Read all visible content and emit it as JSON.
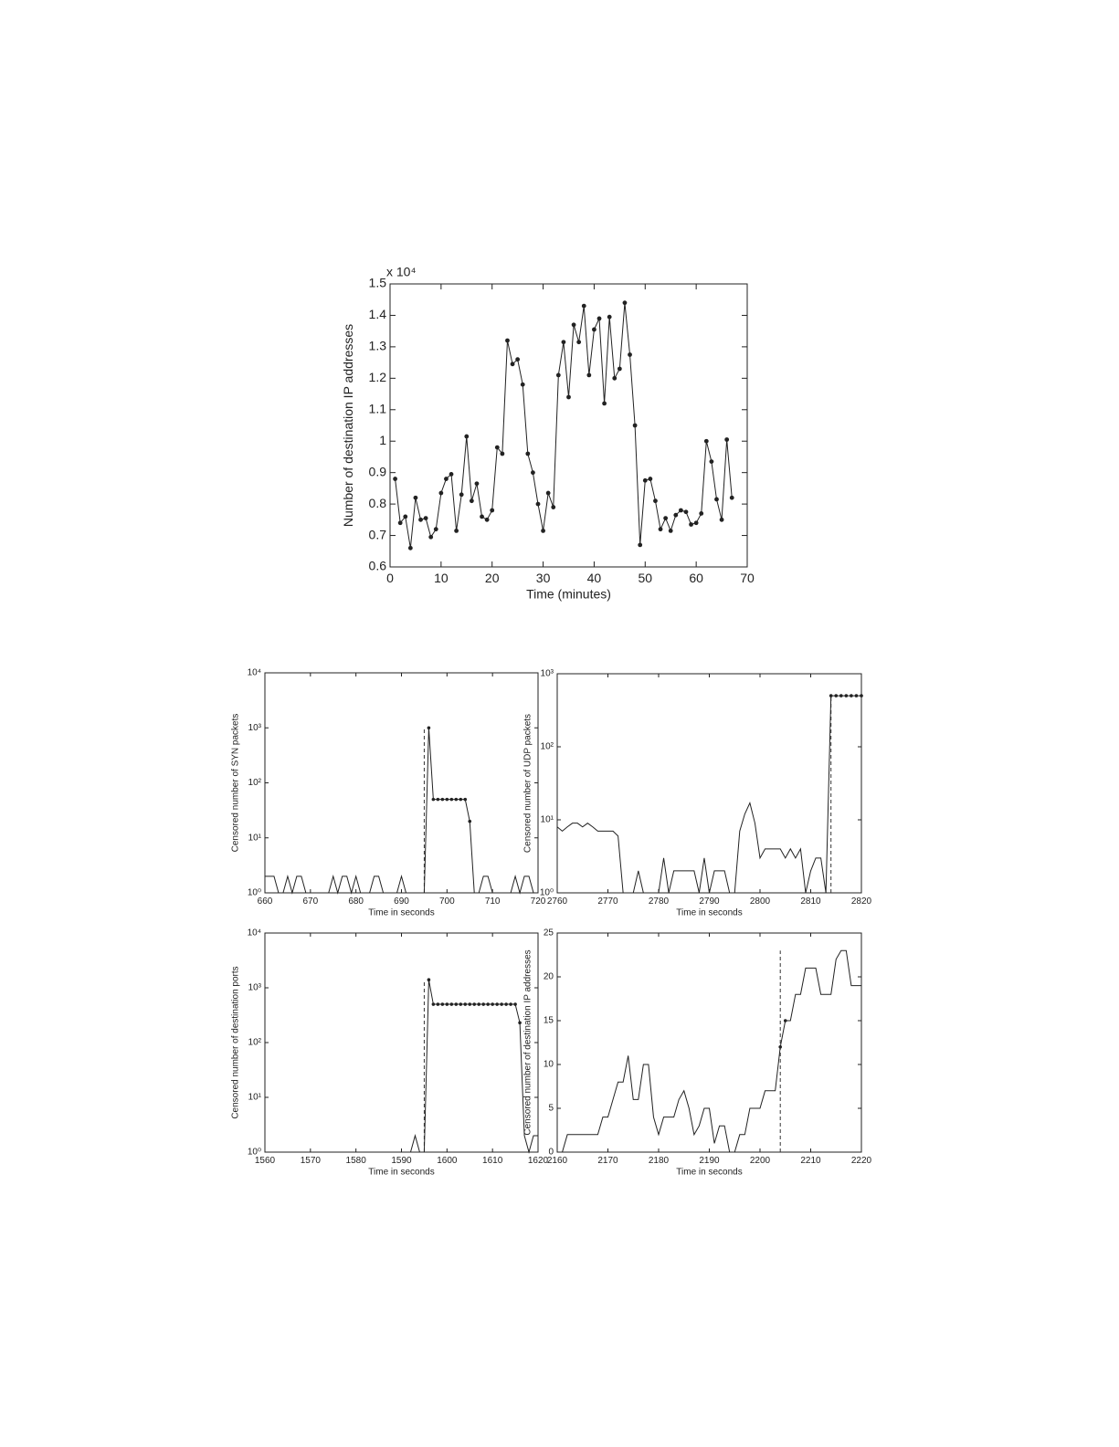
{
  "chart_data": [
    {
      "type": "line",
      "xlabel": "Time (minutes)",
      "ylabel": "Number of destination IP addresses",
      "y_multiplier": "x 10⁴",
      "xlim": [
        0,
        70
      ],
      "ylim": [
        0.6,
        1.5
      ],
      "xticks": [
        0,
        10,
        20,
        30,
        40,
        50,
        60,
        70
      ],
      "yticks": [
        0.6,
        0.7,
        0.8,
        0.9,
        1,
        1.1,
        1.2,
        1.3,
        1.4,
        1.5
      ],
      "log_y": false,
      "x": [
        1,
        2,
        3,
        4,
        5,
        6,
        7,
        8,
        9,
        10,
        11,
        12,
        13,
        14,
        15,
        16,
        17,
        18,
        19,
        20,
        21,
        22,
        23,
        24,
        25,
        26,
        27,
        28,
        29,
        30,
        31,
        32,
        33,
        34,
        35,
        36,
        37,
        38,
        39,
        40,
        41,
        42,
        43,
        44,
        45,
        46,
        47,
        48,
        49,
        50,
        51,
        52,
        53,
        54,
        55,
        56,
        57,
        58,
        59,
        60,
        61,
        62,
        63,
        64,
        65,
        66,
        67
      ],
      "series": [
        {
          "color": "#222222",
          "marker": true,
          "values": [
            0.88,
            0.74,
            0.76,
            0.66,
            0.82,
            0.75,
            0.755,
            0.695,
            0.72,
            0.835,
            0.88,
            0.895,
            0.715,
            0.83,
            1.015,
            0.81,
            0.865,
            0.76,
            0.75,
            0.78,
            0.98,
            0.96,
            1.32,
            1.245,
            1.26,
            1.18,
            0.96,
            0.9,
            0.8,
            0.715,
            0.835,
            0.79,
            1.21,
            1.315,
            1.14,
            1.37,
            1.315,
            1.43,
            1.21,
            1.355,
            1.39,
            1.12,
            1.395,
            1.2,
            1.23,
            1.44,
            1.275,
            1.05,
            0.67,
            0.875,
            0.88,
            0.81,
            0.72,
            0.755,
            0.715,
            0.765,
            0.78,
            0.775,
            0.735,
            0.74,
            0.77,
            1.0,
            0.935,
            0.815,
            0.75,
            1.005,
            0.82
          ]
        }
      ]
    },
    {
      "type": "line",
      "xlabel": "Time in seconds",
      "ylabel": "Censored number of SYN packets",
      "xlim": [
        660,
        720
      ],
      "ylim": [
        1,
        10000
      ],
      "xticks": [
        660,
        670,
        680,
        690,
        700,
        710,
        720
      ],
      "yticks": [
        {
          "value": 1,
          "label": "10⁰"
        },
        {
          "value": 10,
          "label": "10¹"
        },
        {
          "value": 100,
          "label": "10²"
        },
        {
          "value": 1000,
          "label": "10³"
        },
        {
          "value": 10000,
          "label": "10⁴"
        }
      ],
      "log_y": true,
      "x": [
        660,
        661,
        662,
        663,
        664,
        665,
        666,
        667,
        668,
        669,
        670,
        671,
        672,
        673,
        674,
        675,
        676,
        677,
        678,
        679,
        680,
        681,
        682,
        683,
        684,
        685,
        686,
        687,
        688,
        689,
        690,
        691,
        692,
        693,
        694,
        695,
        696,
        697,
        698,
        699,
        700,
        701,
        702,
        703,
        704,
        705,
        706,
        707,
        708,
        709,
        710,
        711,
        712,
        713,
        714,
        715,
        716,
        717,
        718,
        719,
        720
      ],
      "series": [
        {
          "color": "#222222",
          "values": [
            2,
            2,
            2,
            1,
            1,
            2,
            1,
            2,
            2,
            1,
            1,
            1,
            1,
            1,
            1,
            2,
            1,
            2,
            2,
            1,
            2,
            1,
            1,
            1,
            2,
            2,
            1,
            1,
            1,
            1,
            2,
            1,
            1,
            1,
            1,
            1,
            1000,
            50,
            50,
            50,
            50,
            50,
            50,
            50,
            50,
            20,
            1,
            1,
            2,
            2,
            1,
            1,
            1,
            1,
            1,
            2,
            1,
            2,
            2,
            1,
            1
          ],
          "markers": [
            false,
            false,
            false,
            false,
            false,
            false,
            false,
            false,
            false,
            false,
            false,
            false,
            false,
            false,
            false,
            false,
            false,
            false,
            false,
            false,
            false,
            false,
            false,
            false,
            false,
            false,
            false,
            false,
            false,
            false,
            false,
            false,
            false,
            false,
            false,
            false,
            true,
            true,
            true,
            true,
            true,
            true,
            true,
            true,
            true,
            true,
            false,
            false,
            false,
            false,
            false,
            false,
            false,
            false,
            false,
            false,
            false,
            false,
            false,
            false,
            false
          ]
        }
      ],
      "vline": {
        "x": 695,
        "y": 1000
      }
    },
    {
      "type": "line",
      "xlabel": "Time in seconds",
      "ylabel": "Censored number of UDP packets",
      "xlim": [
        2760,
        2820
      ],
      "ylim": [
        1,
        1000
      ],
      "xticks": [
        2760,
        2770,
        2780,
        2790,
        2800,
        2810,
        2820
      ],
      "yticks": [
        {
          "value": 1,
          "label": "10⁰"
        },
        {
          "value": 10,
          "label": "10¹"
        },
        {
          "value": 100,
          "label": "10²"
        },
        {
          "value": 1000,
          "label": "10³"
        }
      ],
      "log_y": true,
      "x": [
        2760,
        2761,
        2762,
        2763,
        2764,
        2765,
        2766,
        2767,
        2768,
        2769,
        2770,
        2771,
        2772,
        2773,
        2774,
        2775,
        2776,
        2777,
        2778,
        2779,
        2780,
        2781,
        2782,
        2783,
        2784,
        2785,
        2786,
        2787,
        2788,
        2789,
        2790,
        2791,
        2792,
        2793,
        2794,
        2795,
        2796,
        2797,
        2798,
        2799,
        2800,
        2801,
        2802,
        2803,
        2804,
        2805,
        2806,
        2807,
        2808,
        2809,
        2810,
        2811,
        2812,
        2813,
        2814,
        2815,
        2816,
        2817,
        2818,
        2819,
        2820
      ],
      "series": [
        {
          "color": "#222222",
          "values": [
            8,
            7,
            8,
            9,
            9,
            8,
            9,
            8,
            7,
            7,
            7,
            7,
            6,
            1,
            1,
            1,
            2,
            1,
            1,
            1,
            1,
            3,
            1,
            2,
            2,
            2,
            2,
            2,
            1,
            3,
            1,
            2,
            2,
            2,
            1,
            1,
            7,
            12,
            17,
            9,
            3,
            4,
            4,
            4,
            4,
            3,
            4,
            3,
            4,
            1,
            2,
            3,
            3,
            1,
            500,
            500,
            500,
            500,
            500,
            500,
            500
          ],
          "markers": [
            false,
            false,
            false,
            false,
            false,
            false,
            false,
            false,
            false,
            false,
            false,
            false,
            false,
            false,
            false,
            false,
            false,
            false,
            false,
            false,
            false,
            false,
            false,
            false,
            false,
            false,
            false,
            false,
            false,
            false,
            false,
            false,
            false,
            false,
            false,
            false,
            false,
            false,
            false,
            false,
            false,
            false,
            false,
            false,
            false,
            false,
            false,
            false,
            false,
            false,
            false,
            false,
            false,
            false,
            true,
            true,
            true,
            true,
            true,
            true,
            true
          ]
        }
      ],
      "vline": {
        "x": 2814,
        "y": 500
      }
    },
    {
      "type": "line",
      "xlabel": "Time in seconds",
      "ylabel": "Censored number of destination ports",
      "xlim": [
        1560,
        1620
      ],
      "ylim": [
        1,
        10000
      ],
      "xticks": [
        1560,
        1570,
        1580,
        1590,
        1600,
        1610,
        1620
      ],
      "yticks": [
        {
          "value": 1,
          "label": "10⁰"
        },
        {
          "value": 10,
          "label": "10¹"
        },
        {
          "value": 100,
          "label": "10²"
        },
        {
          "value": 1000,
          "label": "10³"
        },
        {
          "value": 10000,
          "label": "10⁴"
        }
      ],
      "log_y": true,
      "x": [
        1560,
        1561,
        1562,
        1563,
        1564,
        1565,
        1566,
        1567,
        1568,
        1569,
        1570,
        1571,
        1572,
        1573,
        1574,
        1575,
        1576,
        1577,
        1578,
        1579,
        1580,
        1581,
        1582,
        1583,
        1584,
        1585,
        1586,
        1587,
        1588,
        1589,
        1590,
        1591,
        1592,
        1593,
        1594,
        1595,
        1596,
        1597,
        1598,
        1599,
        1600,
        1601,
        1602,
        1603,
        1604,
        1605,
        1606,
        1607,
        1608,
        1609,
        1610,
        1611,
        1612,
        1613,
        1614,
        1615,
        1616,
        1617,
        1618,
        1619,
        1620
      ],
      "series": [
        {
          "color": "#222222",
          "values": [
            1,
            1,
            1,
            1,
            1,
            1,
            1,
            1,
            1,
            1,
            1,
            1,
            1,
            1,
            1,
            1,
            1,
            1,
            1,
            1,
            1,
            1,
            1,
            1,
            1,
            1,
            1,
            1,
            1,
            1,
            1,
            1,
            1,
            2,
            1,
            1,
            1400,
            500,
            500,
            500,
            500,
            500,
            500,
            500,
            500,
            500,
            500,
            500,
            500,
            500,
            500,
            500,
            500,
            500,
            500,
            500,
            230,
            2,
            1,
            2,
            2
          ],
          "markers": [
            false,
            false,
            false,
            false,
            false,
            false,
            false,
            false,
            false,
            false,
            false,
            false,
            false,
            false,
            false,
            false,
            false,
            false,
            false,
            false,
            false,
            false,
            false,
            false,
            false,
            false,
            false,
            false,
            false,
            false,
            false,
            false,
            false,
            false,
            false,
            false,
            true,
            true,
            true,
            true,
            true,
            true,
            true,
            true,
            true,
            true,
            true,
            true,
            true,
            true,
            true,
            true,
            true,
            true,
            true,
            true,
            true,
            false,
            false,
            false,
            false
          ]
        }
      ],
      "vline": {
        "x": 1595,
        "y": 1400
      }
    },
    {
      "type": "line",
      "xlabel": "Time in seconds",
      "ylabel": "Censored number of destination IP addresses",
      "xlim": [
        2160,
        2220
      ],
      "ylim": [
        0,
        25
      ],
      "xticks": [
        2160,
        2170,
        2180,
        2190,
        2200,
        2210,
        2220
      ],
      "yticks": [
        0,
        5,
        10,
        15,
        20,
        25
      ],
      "log_y": false,
      "x": [
        2160,
        2161,
        2162,
        2163,
        2164,
        2165,
        2166,
        2167,
        2168,
        2169,
        2170,
        2171,
        2172,
        2173,
        2174,
        2175,
        2176,
        2177,
        2178,
        2179,
        2180,
        2181,
        2182,
        2183,
        2184,
        2185,
        2186,
        2187,
        2188,
        2189,
        2190,
        2191,
        2192,
        2193,
        2194,
        2195,
        2196,
        2197,
        2198,
        2199,
        2200,
        2201,
        2202,
        2203,
        2204,
        2205,
        2206,
        2207,
        2208,
        2209,
        2210,
        2211,
        2212,
        2213,
        2214,
        2215,
        2216,
        2217,
        2218,
        2219,
        2220
      ],
      "series": [
        {
          "color": "#222222",
          "values": [
            0,
            0,
            2,
            2,
            2,
            2,
            2,
            2,
            2,
            4,
            4,
            6,
            8,
            8,
            11,
            6,
            6,
            10,
            10,
            4,
            2,
            4,
            4,
            4,
            6,
            7,
            5,
            2,
            3,
            5,
            5,
            1,
            3,
            3,
            0,
            0,
            2,
            2,
            5,
            5,
            5,
            7,
            7,
            7,
            12,
            15,
            15,
            18,
            18,
            21,
            21,
            21,
            18,
            18,
            18,
            22,
            23,
            23,
            19,
            19,
            19
          ],
          "markers": [
            false,
            false,
            false,
            false,
            false,
            false,
            false,
            false,
            false,
            false,
            false,
            false,
            false,
            false,
            false,
            false,
            false,
            false,
            false,
            false,
            false,
            false,
            false,
            false,
            false,
            false,
            false,
            false,
            false,
            false,
            false,
            false,
            false,
            false,
            false,
            false,
            false,
            false,
            false,
            false,
            false,
            false,
            false,
            false,
            true,
            true,
            false,
            false,
            false,
            false,
            false,
            false,
            false,
            false,
            false,
            false,
            false,
            false,
            false,
            false,
            false
          ]
        }
      ],
      "vline": {
        "x": 2204,
        "y": 23
      }
    }
  ]
}
